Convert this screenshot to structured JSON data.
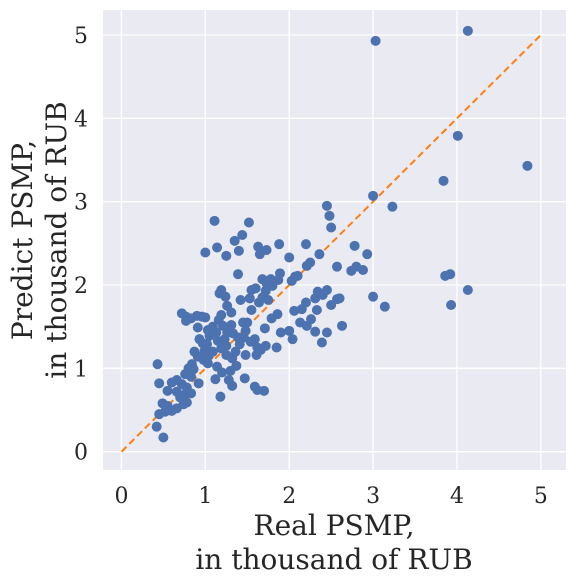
{
  "chart_data": {
    "type": "scatter",
    "xlabel_lines": [
      "Real PSMP,",
      "in thousand of RUB"
    ],
    "ylabel_lines": [
      "Predict PSMP,",
      "in thousand of RUB"
    ],
    "xlim": [
      -0.22,
      5.3
    ],
    "ylim": [
      -0.22,
      5.3
    ],
    "xticks": [
      0,
      1,
      2,
      3,
      4,
      5
    ],
    "yticks": [
      0,
      1,
      2,
      3,
      4,
      5
    ],
    "grid": true,
    "background": "#eaeaf2",
    "point_color": "#4c72b0",
    "reference_line": {
      "from": [
        0,
        0
      ],
      "to": [
        5,
        5
      ],
      "color": "#ff7f0e",
      "style": "dashed"
    },
    "points": [
      [
        3.03,
        4.93
      ],
      [
        4.13,
        5.05
      ],
      [
        4.01,
        3.79
      ],
      [
        4.84,
        3.43
      ],
      [
        3.84,
        3.25
      ],
      [
        3.0,
        3.07
      ],
      [
        3.23,
        2.94
      ],
      [
        2.45,
        2.95
      ],
      [
        2.48,
        2.83
      ],
      [
        2.5,
        2.69
      ],
      [
        3.0,
        1.86
      ],
      [
        3.14,
        1.74
      ],
      [
        3.86,
        2.11
      ],
      [
        3.92,
        2.13
      ],
      [
        3.93,
        1.76
      ],
      [
        4.13,
        1.94
      ],
      [
        2.78,
        2.47
      ],
      [
        2.93,
        2.37
      ],
      [
        2.8,
        2.22
      ],
      [
        2.74,
        2.17
      ],
      [
        2.88,
        2.18
      ],
      [
        2.57,
        2.22
      ],
      [
        2.6,
        1.84
      ],
      [
        2.5,
        1.76
      ],
      [
        2.57,
        1.83
      ],
      [
        2.63,
        1.51
      ],
      [
        2.45,
        1.43
      ],
      [
        2.31,
        1.44
      ],
      [
        2.39,
        1.31
      ],
      [
        2.21,
        1.51
      ],
      [
        2.13,
        1.55
      ],
      [
        2.0,
        1.45
      ],
      [
        1.9,
        1.43
      ],
      [
        2.04,
        1.35
      ],
      [
        1.85,
        1.25
      ],
      [
        2.34,
        1.92
      ],
      [
        2.4,
        1.88
      ],
      [
        2.45,
        1.94
      ],
      [
        2.31,
        1.84
      ],
      [
        2.2,
        1.79
      ],
      [
        2.15,
        1.71
      ],
      [
        2.33,
        1.7
      ],
      [
        2.26,
        1.59
      ],
      [
        2.06,
        1.69
      ],
      [
        2.03,
        2.05
      ],
      [
        2.1,
        2.11
      ],
      [
        2.21,
        2.23
      ],
      [
        2.25,
        2.27
      ],
      [
        2.36,
        2.37
      ],
      [
        2.2,
        2.49
      ],
      [
        2.0,
        2.33
      ],
      [
        2.07,
        2.1
      ],
      [
        1.87,
        2.06
      ],
      [
        1.89,
        2.14
      ],
      [
        1.88,
        2.49
      ],
      [
        1.73,
        2.42
      ],
      [
        1.63,
        2.46
      ],
      [
        1.65,
        2.37
      ],
      [
        1.68,
        2.07
      ],
      [
        1.73,
        2.02
      ],
      [
        1.78,
        2.07
      ],
      [
        1.8,
        1.99
      ],
      [
        1.72,
        1.93
      ],
      [
        1.68,
        1.85
      ],
      [
        1.64,
        1.79
      ],
      [
        1.6,
        1.96
      ],
      [
        1.55,
        1.94
      ],
      [
        1.53,
        1.84
      ],
      [
        1.75,
        1.82
      ],
      [
        1.86,
        1.65
      ],
      [
        1.79,
        1.6
      ],
      [
        1.71,
        1.48
      ],
      [
        1.55,
        1.7
      ],
      [
        1.5,
        1.55
      ],
      [
        1.45,
        1.55
      ],
      [
        1.48,
        1.45
      ],
      [
        1.46,
        1.37
      ],
      [
        1.59,
        1.35
      ],
      [
        1.66,
        1.22
      ],
      [
        1.72,
        1.27
      ],
      [
        1.61,
        1.16
      ],
      [
        1.54,
        1.32
      ],
      [
        1.41,
        1.29
      ],
      [
        1.39,
        1.37
      ],
      [
        1.33,
        1.42
      ],
      [
        1.26,
        1.43
      ],
      [
        1.25,
        1.27
      ],
      [
        1.23,
        1.35
      ],
      [
        1.19,
        1.24
      ],
      [
        1.25,
        1.16
      ],
      [
        1.32,
        1.12
      ],
      [
        1.37,
        1.03
      ],
      [
        1.3,
        0.97
      ],
      [
        1.28,
        0.86
      ],
      [
        1.32,
        0.79
      ],
      [
        1.2,
        0.95
      ],
      [
        1.12,
        0.87
      ],
      [
        1.18,
        0.66
      ],
      [
        1.47,
        0.88
      ],
      [
        1.59,
        0.78
      ],
      [
        1.62,
        0.74
      ],
      [
        1.7,
        0.73
      ],
      [
        1.62,
        1.25
      ],
      [
        1.48,
        1.16
      ],
      [
        1.36,
        1.2
      ],
      [
        1.39,
        2.13
      ],
      [
        1.4,
        2.41
      ],
      [
        1.44,
        2.6
      ],
      [
        1.35,
        2.53
      ],
      [
        1.52,
        2.75
      ],
      [
        1.25,
        2.35
      ],
      [
        1.14,
        2.45
      ],
      [
        1.11,
        2.77
      ],
      [
        1.0,
        2.39
      ],
      [
        1.17,
        1.9
      ],
      [
        1.19,
        1.94
      ],
      [
        1.24,
        1.86
      ],
      [
        1.42,
        1.82
      ],
      [
        1.26,
        1.75
      ],
      [
        1.31,
        1.67
      ],
      [
        1.16,
        1.58
      ],
      [
        1.21,
        1.51
      ],
      [
        1.31,
        1.52
      ],
      [
        1.19,
        1.64
      ],
      [
        1.09,
        1.5
      ],
      [
        1.0,
        1.61
      ],
      [
        0.96,
        1.62
      ],
      [
        0.9,
        1.63
      ],
      [
        0.83,
        1.6
      ],
      [
        0.77,
        1.62
      ],
      [
        0.72,
        1.66
      ],
      [
        0.77,
        1.57
      ],
      [
        0.91,
        1.49
      ],
      [
        1.03,
        1.46
      ],
      [
        1.05,
        1.39
      ],
      [
        1.13,
        1.43
      ],
      [
        1.15,
        1.33
      ],
      [
        1.02,
        1.29
      ],
      [
        0.97,
        1.3
      ],
      [
        0.91,
        1.14
      ],
      [
        0.98,
        1.1
      ],
      [
        1.04,
        1.15
      ],
      [
        1.09,
        1.2
      ],
      [
        1.14,
        1.02
      ],
      [
        1.03,
        1.06
      ],
      [
        0.84,
        1.05
      ],
      [
        0.86,
        0.99
      ],
      [
        0.8,
        1.0
      ],
      [
        0.83,
        0.9
      ],
      [
        0.76,
        0.93
      ],
      [
        0.66,
        0.86
      ],
      [
        0.6,
        0.83
      ],
      [
        0.72,
        0.81
      ],
      [
        0.78,
        0.77
      ],
      [
        0.76,
        0.69
      ],
      [
        0.7,
        0.65
      ],
      [
        0.78,
        0.59
      ],
      [
        0.74,
        0.57
      ],
      [
        0.66,
        0.52
      ],
      [
        0.6,
        0.49
      ],
      [
        0.55,
        0.55
      ],
      [
        0.49,
        0.58
      ],
      [
        0.52,
        0.48
      ],
      [
        0.45,
        0.45
      ],
      [
        0.43,
        1.05
      ],
      [
        0.45,
        0.82
      ],
      [
        0.42,
        0.3
      ],
      [
        0.5,
        0.17
      ],
      [
        0.92,
        0.82
      ],
      [
        0.83,
        0.7
      ],
      [
        0.66,
        0.72
      ],
      [
        0.55,
        0.73
      ],
      [
        0.93,
        1.35
      ],
      [
        0.99,
        1.21
      ],
      [
        0.87,
        1.2
      ]
    ]
  }
}
